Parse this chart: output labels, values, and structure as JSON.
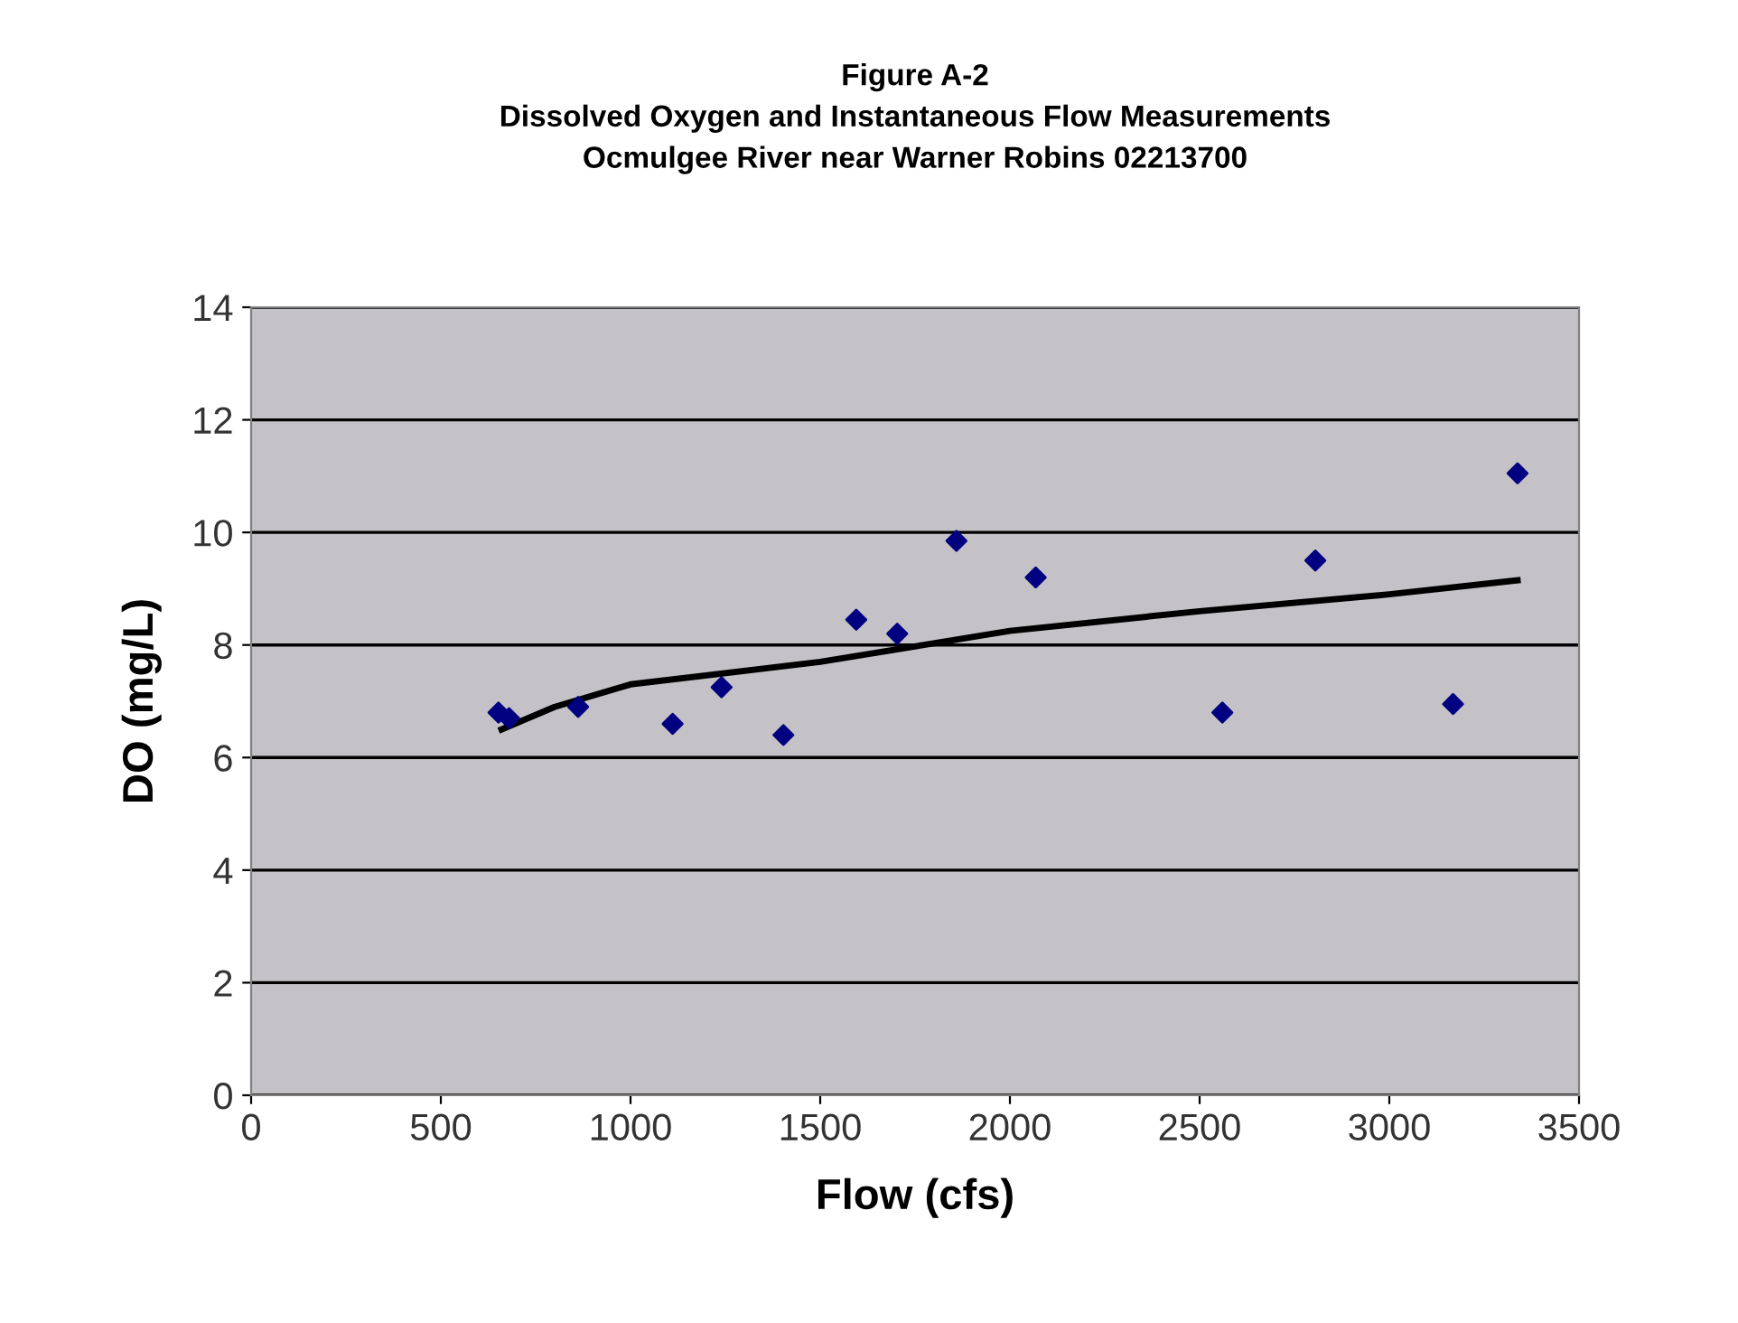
{
  "chart_data": {
    "type": "scatter",
    "title": "Figure A-2\nDissolved Oxygen and Instantaneous Flow Measurements\nOcmulgee River near Warner Robins 02213700",
    "xlabel": "Flow (cfs)",
    "ylabel": "DO (mg/L)",
    "series": [
      {
        "color": "#000080",
        "marker": "diamond",
        "x": [
          652,
          680,
          862,
          1111,
          1240,
          1403,
          1595,
          1703,
          1859,
          2068,
          2560,
          2805,
          3168,
          3338
        ],
        "values": [
          6.8,
          6.7,
          6.9,
          6.6,
          7.25,
          6.4,
          8.45,
          8.2,
          9.85,
          9.2,
          6.8,
          9.5,
          6.95,
          11.05
        ]
      },
      {
        "type": "line",
        "color": "#000000",
        "marker": "none",
        "x": [
          660,
          800,
          1000,
          1500,
          2000,
          2500,
          3000,
          3338
        ],
        "values": [
          6.5,
          6.9,
          7.3,
          7.7,
          8.25,
          8.6,
          8.9,
          9.15
        ]
      }
    ],
    "xlim": [
      0,
      3500
    ],
    "xticks": [
      0,
      500,
      1000,
      1500,
      2000,
      2500,
      3000,
      3500
    ],
    "ylim": [
      0,
      14
    ],
    "yticks": [
      0,
      2,
      4,
      6,
      8,
      10,
      12,
      14
    ],
    "grid": "y"
  }
}
